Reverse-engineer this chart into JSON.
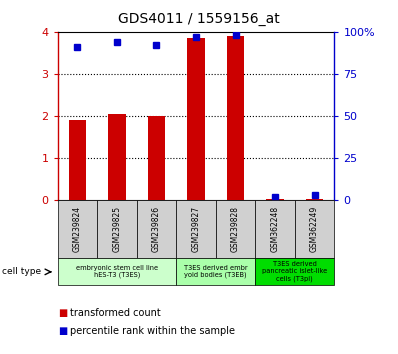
{
  "title": "GDS4011 / 1559156_at",
  "categories": [
    "GSM239824",
    "GSM239825",
    "GSM239826",
    "GSM239827",
    "GSM239828",
    "GSM362248",
    "GSM362249"
  ],
  "red_values": [
    1.9,
    2.05,
    2.0,
    3.85,
    3.9,
    0.02,
    0.02
  ],
  "blue_values": [
    91,
    94,
    92,
    97,
    98,
    2,
    3
  ],
  "ylim_left": [
    0,
    4
  ],
  "ylim_right": [
    0,
    100
  ],
  "yticks_left": [
    0,
    1,
    2,
    3,
    4
  ],
  "yticks_right": [
    0,
    25,
    50,
    75,
    100
  ],
  "ytick_labels_left": [
    "0",
    "1",
    "2",
    "3",
    "4"
  ],
  "ytick_labels_right": [
    "0",
    "25",
    "50",
    "75",
    "100%"
  ],
  "red_color": "#cc0000",
  "blue_color": "#0000cc",
  "cell_groups": [
    {
      "label": "embryonic stem cell line\nhES-T3 (T3ES)",
      "start": 0,
      "end": 2,
      "color": "#ccffcc"
    },
    {
      "label": "T3ES derived embr\nyoid bodies (T3EB)",
      "start": 3,
      "end": 4,
      "color": "#aaffaa"
    },
    {
      "label": "T3ES derived\npancreatic islet-like\ncells (T3pi)",
      "start": 5,
      "end": 6,
      "color": "#00dd00"
    }
  ],
  "legend_red": "transformed count",
  "legend_blue": "percentile rank within the sample",
  "cell_type_label": "cell type",
  "gsm_box_color": "#d0d0d0"
}
